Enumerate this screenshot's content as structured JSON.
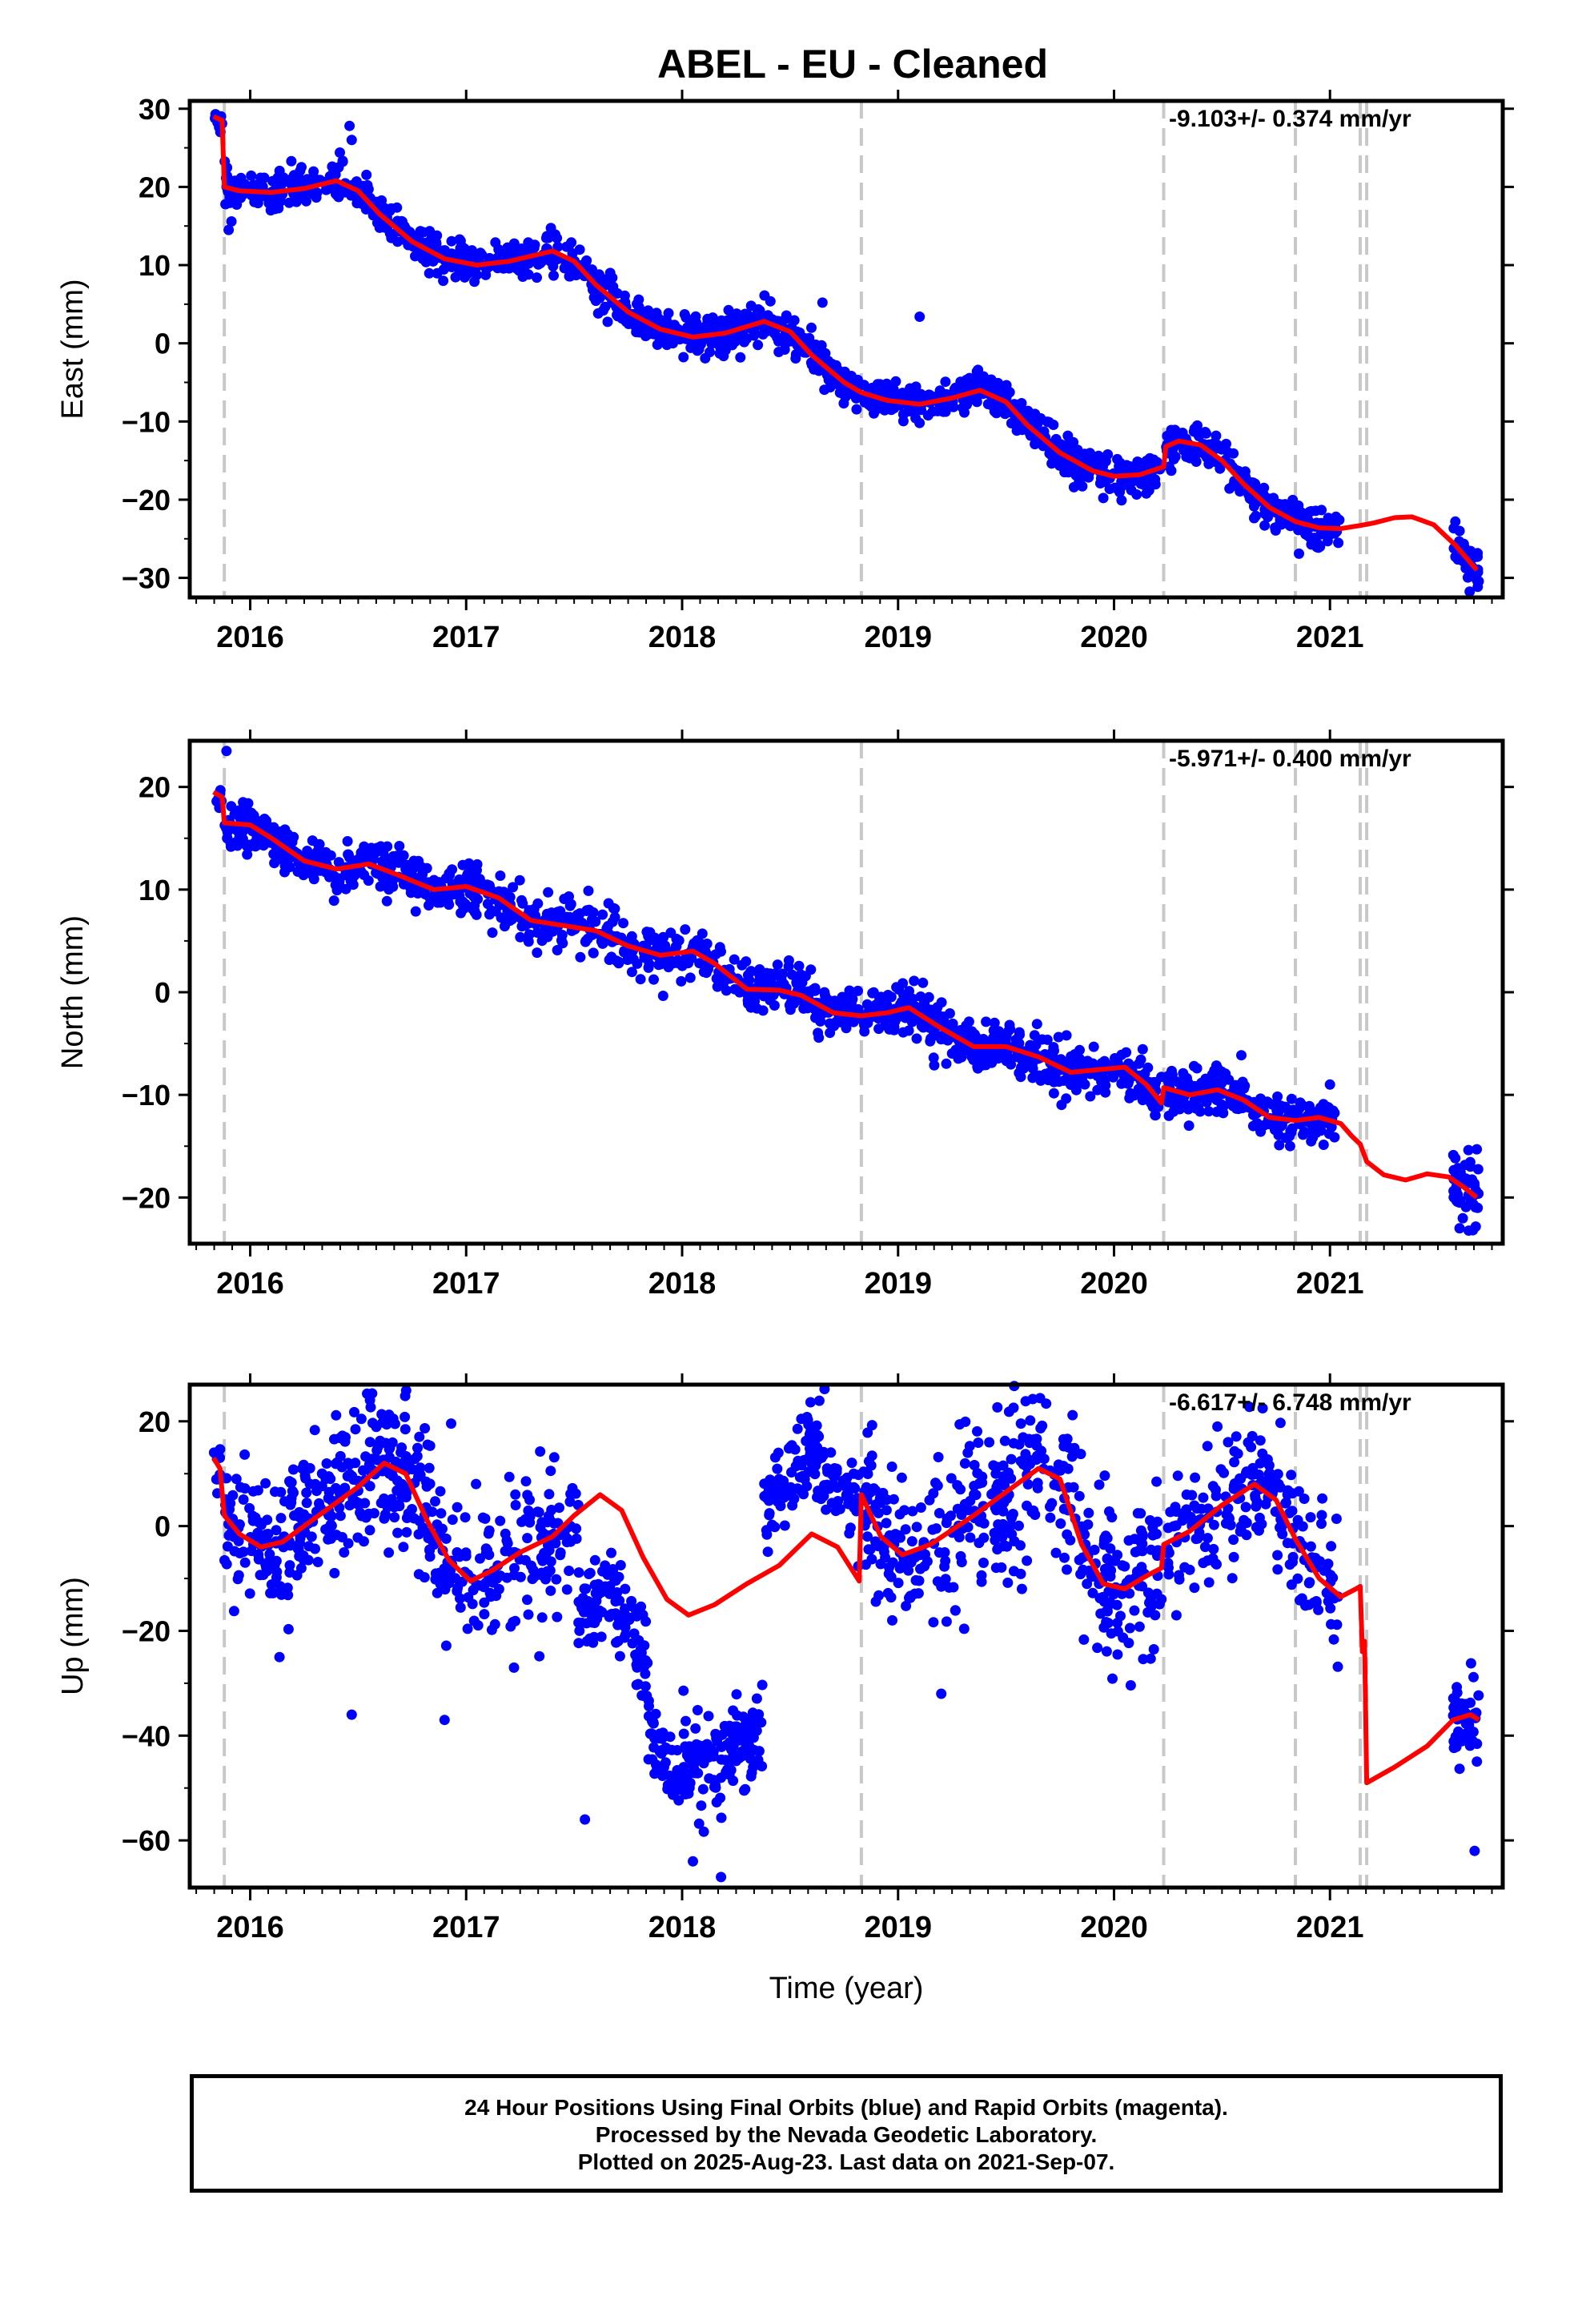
{
  "title": "ABEL  - EU - Cleaned",
  "xlabel": "Time (year)",
  "footer": {
    "line1": "24 Hour Positions Using Final Orbits (blue) and Rapid Orbits (magenta).",
    "line2": "Processed by the Nevada Geodetic Laboratory.",
    "line3": "Plotted on 2025-Aug-23. Last data on 2021-Sep-07."
  },
  "colors": {
    "points": "#0000ff",
    "model": "#ff0000",
    "events": "#c8c8c8",
    "frame": "#000000"
  },
  "chart_data": [
    {
      "type": "scatter",
      "component": "East",
      "ylabel": "East (mm)",
      "rate_label": "-9.103+/- 0.374 mm/yr",
      "xlim": [
        2015.72,
        2021.8
      ],
      "ylim": [
        -32.5,
        31
      ],
      "yticks": [
        30,
        20,
        10,
        0,
        -10,
        -20,
        -30
      ],
      "xticks": [
        2016,
        2017,
        2018,
        2019,
        2020,
        2021
      ],
      "event_lines": [
        2015.88,
        2018.83,
        2020.23,
        2020.84,
        2021.14,
        2021.17
      ],
      "model_curve": [
        [
          2015.83,
          29.0
        ],
        [
          2015.87,
          28.5
        ],
        [
          2015.88,
          20.0
        ],
        [
          2015.95,
          19.5
        ],
        [
          2016.1,
          19.3
        ],
        [
          2016.25,
          19.8
        ],
        [
          2016.4,
          20.8
        ],
        [
          2016.5,
          19.5
        ],
        [
          2016.6,
          16.5
        ],
        [
          2016.75,
          13.0
        ],
        [
          2016.9,
          10.8
        ],
        [
          2017.05,
          10.0
        ],
        [
          2017.2,
          10.5
        ],
        [
          2017.4,
          11.8
        ],
        [
          2017.5,
          10.5
        ],
        [
          2017.6,
          7.5
        ],
        [
          2017.75,
          4.0
        ],
        [
          2017.9,
          1.8
        ],
        [
          2018.05,
          0.8
        ],
        [
          2018.2,
          1.3
        ],
        [
          2018.38,
          2.8
        ],
        [
          2018.5,
          1.5
        ],
        [
          2018.6,
          -1.5
        ],
        [
          2018.75,
          -5.0
        ],
        [
          2018.83,
          -6.3
        ],
        [
          2018.95,
          -7.3
        ],
        [
          2019.1,
          -7.8
        ],
        [
          2019.25,
          -7.0
        ],
        [
          2019.38,
          -6.0
        ],
        [
          2019.5,
          -7.5
        ],
        [
          2019.6,
          -10.5
        ],
        [
          2019.75,
          -14.0
        ],
        [
          2019.9,
          -16.3
        ],
        [
          2020.0,
          -17.0
        ],
        [
          2020.12,
          -16.8
        ],
        [
          2020.23,
          -15.8
        ],
        [
          2020.24,
          -13.2
        ],
        [
          2020.3,
          -12.5
        ],
        [
          2020.4,
          -13.0
        ],
        [
          2020.5,
          -15.0
        ],
        [
          2020.6,
          -18.0
        ],
        [
          2020.72,
          -21.0
        ],
        [
          2020.84,
          -22.8
        ],
        [
          2020.95,
          -23.6
        ],
        [
          2021.05,
          -23.7
        ],
        [
          2021.14,
          -23.3
        ],
        [
          2021.2,
          -23.0
        ],
        [
          2021.3,
          -22.3
        ],
        [
          2021.38,
          -22.2
        ],
        [
          2021.48,
          -23.2
        ],
        [
          2021.58,
          -25.8
        ],
        [
          2021.68,
          -29.0
        ]
      ],
      "point_segments": [
        {
          "x0": 2015.83,
          "x1": 2015.87,
          "n": 8,
          "sd": 1.0
        },
        {
          "x0": 2015.88,
          "x1": 2018.82,
          "n": 820,
          "sd": 1.2
        },
        {
          "x0": 2018.84,
          "x1": 2020.22,
          "n": 430,
          "sd": 1.2
        },
        {
          "x0": 2020.24,
          "x1": 2020.83,
          "n": 170,
          "sd": 1.2
        },
        {
          "x0": 2020.85,
          "x1": 2021.05,
          "n": 60,
          "sd": 1.2
        },
        {
          "x0": 2021.57,
          "x1": 2021.69,
          "n": 45,
          "sd": 1.3
        }
      ],
      "outliers": [
        [
          2016.46,
          27.8
        ],
        [
          2016.47,
          26.0
        ],
        [
          2015.9,
          14.5
        ],
        [
          2018.65,
          5.2
        ],
        [
          2019.1,
          3.4
        ],
        [
          2018.27,
          -1.8
        ]
      ]
    },
    {
      "type": "scatter",
      "component": "North",
      "ylabel": "North (mm)",
      "rate_label": "-5.971+/- 0.400 mm/yr",
      "xlim": [
        2015.72,
        2021.8
      ],
      "ylim": [
        -24.5,
        24.5
      ],
      "yticks": [
        20,
        10,
        0,
        -10,
        -20
      ],
      "xticks": [
        2016,
        2017,
        2018,
        2019,
        2020,
        2021
      ],
      "event_lines": [
        2015.88,
        2018.83,
        2020.23,
        2020.84,
        2021.14,
        2021.17
      ],
      "model_curve": [
        [
          2015.83,
          19.5
        ],
        [
          2015.87,
          19.0
        ],
        [
          2015.88,
          16.5
        ],
        [
          2016.0,
          16.3
        ],
        [
          2016.1,
          15.0
        ],
        [
          2016.25,
          12.8
        ],
        [
          2016.4,
          12.0
        ],
        [
          2016.55,
          12.5
        ],
        [
          2016.7,
          11.3
        ],
        [
          2016.85,
          10.0
        ],
        [
          2017.0,
          10.3
        ],
        [
          2017.15,
          9.2
        ],
        [
          2017.3,
          7.0
        ],
        [
          2017.45,
          6.5
        ],
        [
          2017.6,
          6.0
        ],
        [
          2017.75,
          4.5
        ],
        [
          2017.9,
          3.6
        ],
        [
          2018.05,
          4.0
        ],
        [
          2018.15,
          2.8
        ],
        [
          2018.3,
          0.3
        ],
        [
          2018.45,
          0.2
        ],
        [
          2018.55,
          -0.3
        ],
        [
          2018.7,
          -2.0
        ],
        [
          2018.83,
          -2.3
        ],
        [
          2018.95,
          -2.0
        ],
        [
          2019.05,
          -1.5
        ],
        [
          2019.2,
          -3.5
        ],
        [
          2019.35,
          -5.3
        ],
        [
          2019.5,
          -5.3
        ],
        [
          2019.65,
          -6.3
        ],
        [
          2019.8,
          -7.8
        ],
        [
          2019.95,
          -7.5
        ],
        [
          2020.05,
          -7.3
        ],
        [
          2020.15,
          -9.0
        ],
        [
          2020.22,
          -10.8
        ],
        [
          2020.23,
          -9.3
        ],
        [
          2020.35,
          -10.0
        ],
        [
          2020.48,
          -9.5
        ],
        [
          2020.6,
          -10.5
        ],
        [
          2020.72,
          -12.2
        ],
        [
          2020.84,
          -12.5
        ],
        [
          2020.95,
          -12.2
        ],
        [
          2021.05,
          -12.8
        ],
        [
          2021.1,
          -14.0
        ],
        [
          2021.14,
          -14.8
        ],
        [
          2021.17,
          -16.5
        ],
        [
          2021.25,
          -17.8
        ],
        [
          2021.35,
          -18.3
        ],
        [
          2021.45,
          -17.7
        ],
        [
          2021.55,
          -18.0
        ],
        [
          2021.62,
          -19.0
        ],
        [
          2021.68,
          -20.0
        ]
      ],
      "point_segments": [
        {
          "x0": 2015.83,
          "x1": 2015.87,
          "n": 8,
          "sd": 1.0
        },
        {
          "x0": 2015.88,
          "x1": 2018.82,
          "n": 820,
          "sd": 1.2
        },
        {
          "x0": 2018.84,
          "x1": 2020.22,
          "n": 430,
          "sd": 1.2
        },
        {
          "x0": 2020.24,
          "x1": 2020.83,
          "n": 170,
          "sd": 1.2
        },
        {
          "x0": 2020.85,
          "x1": 2021.03,
          "n": 55,
          "sd": 1.1
        },
        {
          "x0": 2021.57,
          "x1": 2021.69,
          "n": 45,
          "sd": 1.6
        }
      ],
      "outliers": [
        [
          2015.89,
          23.5
        ],
        [
          2021.6,
          -23.0
        ],
        [
          2021.68,
          -15.3
        ],
        [
          2021.0,
          -9.0
        ]
      ]
    },
    {
      "type": "scatter",
      "component": "Up",
      "ylabel": "Up (mm)",
      "rate_label": "-6.617+/- 6.748 mm/yr",
      "xlim": [
        2015.72,
        2021.8
      ],
      "ylim": [
        -69,
        27
      ],
      "yticks": [
        20,
        0,
        -20,
        -40,
        -60
      ],
      "xticks": [
        2016,
        2017,
        2018,
        2019,
        2020,
        2021
      ],
      "event_lines": [
        2015.88,
        2018.83,
        2020.23,
        2020.84,
        2021.14,
        2021.17
      ],
      "model_curve": [
        [
          2015.83,
          13.0
        ],
        [
          2015.86,
          11.0
        ],
        [
          2015.88,
          2.0
        ],
        [
          2015.95,
          -1.5
        ],
        [
          2016.05,
          -4.0
        ],
        [
          2016.15,
          -3.0
        ],
        [
          2016.3,
          1.5
        ],
        [
          2016.5,
          7.5
        ],
        [
          2016.62,
          12.0
        ],
        [
          2016.72,
          10.0
        ],
        [
          2016.82,
          1.0
        ],
        [
          2016.92,
          -6.5
        ],
        [
          2017.02,
          -10.5
        ],
        [
          2017.12,
          -8.5
        ],
        [
          2017.25,
          -5.0
        ],
        [
          2017.4,
          -2.0
        ],
        [
          2017.5,
          2.0
        ],
        [
          2017.62,
          6.0
        ],
        [
          2017.72,
          3.0
        ],
        [
          2017.82,
          -6.0
        ],
        [
          2017.93,
          -14.0
        ],
        [
          2018.03,
          -17.0
        ],
        [
          2018.15,
          -15.0
        ],
        [
          2018.3,
          -11.0
        ],
        [
          2018.45,
          -7.5
        ],
        [
          2018.6,
          -1.5
        ],
        [
          2018.72,
          -4.0
        ],
        [
          2018.82,
          -10.5
        ],
        [
          2018.83,
          6.0
        ],
        [
          2018.92,
          -2.0
        ],
        [
          2019.02,
          -5.5
        ],
        [
          2019.15,
          -3.5
        ],
        [
          2019.35,
          2.0
        ],
        [
          2019.55,
          8.0
        ],
        [
          2019.65,
          11.0
        ],
        [
          2019.75,
          9.0
        ],
        [
          2019.85,
          -3.5
        ],
        [
          2019.95,
          -11.0
        ],
        [
          2020.05,
          -12.0
        ],
        [
          2020.15,
          -9.5
        ],
        [
          2020.22,
          -8.0
        ],
        [
          2020.23,
          -3.5
        ],
        [
          2020.35,
          -1.0
        ],
        [
          2020.5,
          4.0
        ],
        [
          2020.65,
          8.0
        ],
        [
          2020.75,
          5.0
        ],
        [
          2020.84,
          -2.5
        ],
        [
          2020.95,
          -10.0
        ],
        [
          2021.05,
          -13.5
        ],
        [
          2021.12,
          -12.0
        ],
        [
          2021.14,
          -11.5
        ],
        [
          2021.15,
          -24.0
        ],
        [
          2021.16,
          -22.0
        ],
        [
          2021.17,
          -49.0
        ],
        [
          2021.3,
          -46.0
        ],
        [
          2021.45,
          -42.0
        ],
        [
          2021.57,
          -37.0
        ],
        [
          2021.65,
          -36.0
        ],
        [
          2021.69,
          -37.0
        ]
      ],
      "point_segments": [
        {
          "x0": 2015.83,
          "x1": 2015.87,
          "n": 8,
          "sd": 3.0
        },
        {
          "x0": 2015.88,
          "x1": 2017.52,
          "n": 520,
          "sd": 7.0
        },
        {
          "x0": 2017.52,
          "x1": 2017.84,
          "n": 110,
          "sd": 4.5,
          "offset": -19
        },
        {
          "x0": 2017.84,
          "x1": 2018.38,
          "n": 190,
          "sd": 4.5,
          "offset": -30
        },
        {
          "x0": 2018.38,
          "x1": 2018.82,
          "n": 150,
          "sd": 5.0,
          "offset": 14
        },
        {
          "x0": 2018.84,
          "x1": 2020.22,
          "n": 430,
          "sd": 7.5
        },
        {
          "x0": 2020.24,
          "x1": 2020.83,
          "n": 170,
          "sd": 6.0
        },
        {
          "x0": 2020.85,
          "x1": 2021.04,
          "n": 50,
          "sd": 8.0
        },
        {
          "x0": 2021.57,
          "x1": 2021.69,
          "n": 45,
          "sd": 4.0
        }
      ],
      "outliers": [
        [
          2016.47,
          -36.0
        ],
        [
          2016.9,
          -37.0
        ],
        [
          2017.55,
          -56.0
        ],
        [
          2018.05,
          -64.0
        ],
        [
          2018.18,
          -67.0
        ],
        [
          2021.67,
          -62.0
        ],
        [
          2019.2,
          -32.0
        ]
      ]
    }
  ]
}
